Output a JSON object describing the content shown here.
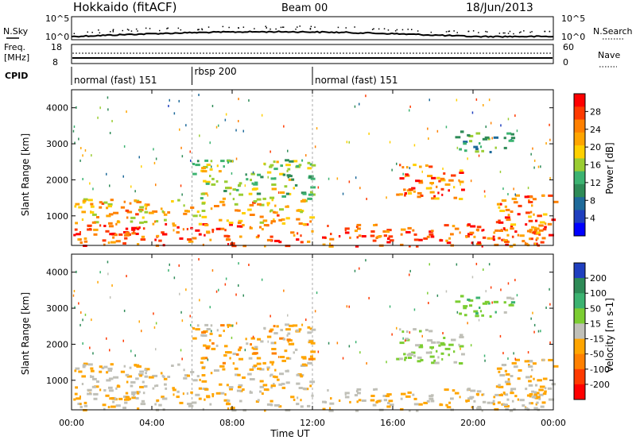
{
  "header": {
    "station": "Hokkaido (fitACF)",
    "beam": "Beam 00",
    "date": "18/Jun/2013"
  },
  "top_panels": {
    "nsky_label": "N.Sky",
    "nsky_ticks": [
      "10^5",
      "10^0"
    ],
    "nsearch_label": "N.Search",
    "nsearch_ticks": [
      "10^5",
      "10^0"
    ],
    "freq_label": "Freq.",
    "freq_unit": "[MHz]",
    "freq_ticks": [
      "18",
      "8"
    ],
    "nave_label": "Nave",
    "nave_ticks": [
      "60",
      "0"
    ],
    "cpid_label": "CPID"
  },
  "cpid_segments": [
    {
      "label": "normal (fast) 151",
      "start_hour": 0
    },
    {
      "label": "rbsp 200",
      "start_hour": 6
    },
    {
      "label": "normal (fast) 151",
      "start_hour": 12
    }
  ],
  "axes": {
    "ylabel": "Slant Range [km]",
    "yticks": [
      "4000",
      "3000",
      "2000",
      "1000"
    ],
    "ytick_values": [
      4000,
      3000,
      2000,
      1000
    ],
    "yrange": [
      180,
      4500
    ],
    "xlabel": "Time UT",
    "xticks": [
      "00:00",
      "04:00",
      "08:00",
      "12:00",
      "16:00",
      "20:00",
      "00:00"
    ],
    "xtick_hours": [
      0,
      4,
      8,
      12,
      16,
      20,
      24
    ]
  },
  "power_colorbar": {
    "label": "Power [dB]",
    "ticks": [
      "28",
      "24",
      "20",
      "16",
      "12",
      "8",
      "4"
    ],
    "colors": [
      "#ff0000",
      "#ff3a00",
      "#ff8000",
      "#ffa500",
      "#ffd000",
      "#9acd32",
      "#3cb371",
      "#2e8b57",
      "#1e6a9a",
      "#1f3fbf",
      "#0000ff"
    ]
  },
  "velocity_colorbar": {
    "label": "Velocity [m s-1]",
    "ticks": [
      "200",
      "100",
      "50",
      "15",
      "-15",
      "-50",
      "-100",
      "-200"
    ],
    "colors": [
      "#1f3fbf",
      "#2e8b57",
      "#3cb371",
      "#7ccd32",
      "#c0c0b8",
      "#ffa500",
      "#ff8000",
      "#ff3a00",
      "#ff0000"
    ]
  },
  "chart_data": {
    "type": "heatmap",
    "title": "Hokkaido (fitACF)",
    "xlabel": "Time UT",
    "ylabel": "Slant Range [km]",
    "xlim": [
      0,
      24
    ],
    "ylim": [
      180,
      4500
    ],
    "panels": [
      {
        "name": "Power",
        "unit": "dB",
        "colorbar_range": [
          0,
          30
        ]
      },
      {
        "name": "Velocity",
        "unit": "m s-1",
        "colorbar_range": [
          -200,
          200
        ]
      }
    ],
    "scatter_regions": [
      {
        "hours": [
          0,
          24
        ],
        "range_km": [
          180,
          800
        ],
        "power_db": 26,
        "velocity": -15
      },
      {
        "hours": [
          0,
          12
        ],
        "range_km": [
          800,
          1500
        ],
        "power_db": 20,
        "velocity": -15
      },
      {
        "hours": [
          6,
          12
        ],
        "range_km": [
          1500,
          2600
        ],
        "power_db": 14,
        "velocity": -30
      },
      {
        "hours": [
          16,
          19.5
        ],
        "range_km": [
          1500,
          2500
        ],
        "power_db": 24,
        "velocity": 15
      },
      {
        "hours": [
          19,
          22
        ],
        "range_km": [
          2800,
          3400
        ],
        "power_db": 10,
        "velocity": 40
      },
      {
        "hours": [
          21,
          24
        ],
        "range_km": [
          180,
          1600
        ],
        "power_db": 24,
        "velocity": -15
      }
    ]
  }
}
